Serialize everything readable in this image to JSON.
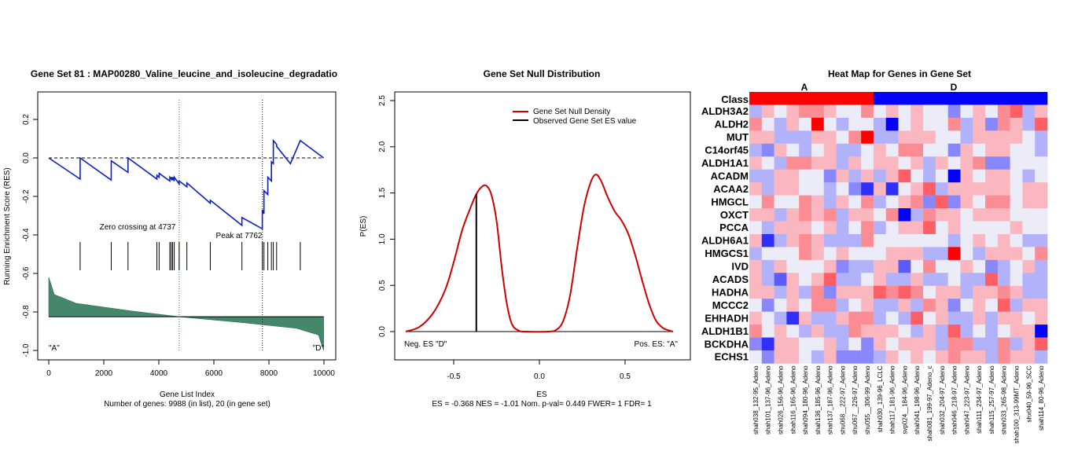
{
  "panel1": {
    "title": "Gene Set  81 : MAP00280_Valine_leucine_and_isoleucine_degradatio",
    "ylabel": "Running Enrichment Score (RES)",
    "xlabel": "Gene List Index",
    "footer": "Number of genes: 9988 (in list), 20 (in gene set)",
    "annot_zero": "Zero crossing at 4737",
    "annot_peak": "Peak at 7762",
    "corner_left": "\"A\"",
    "corner_right": "\"D\"",
    "xticks": [
      "0",
      "2000",
      "4000",
      "6000",
      "8000",
      "10000"
    ],
    "yticks": [
      "-1.0",
      "-0.8",
      "-0.6",
      "-0.4",
      "-0.2",
      "0.0",
      "0.2"
    ]
  },
  "panel2": {
    "title": "Gene Set Null Distribution",
    "ylabel": "P(ES)",
    "xlabel": "ES",
    "footer": "ES = -0.368  NES = -1.01 Nom. p-val= 0.449 FWER= 1 FDR= 1",
    "legend_density": "Gene Set Null Density",
    "legend_observed": "Observed Gene Set ES value",
    "neg_label": "Neg. ES \"D\"",
    "pos_label": "Pos. ES: \"A\"",
    "xticks": [
      "-0.5",
      "0.0",
      "0.5"
    ],
    "yticks": [
      "0.0",
      "0.5",
      "1.0",
      "1.5",
      "2.0",
      "2.5"
    ]
  },
  "panel3": {
    "title": "Heat Map for Genes in Gene Set",
    "class_label": "Class",
    "class_a": "A",
    "class_d": "D",
    "genes": [
      "ALDH3A2",
      "ALDH2",
      "MUT",
      "C14orf45",
      "ALDH1A1",
      "ACADM",
      "ACAA2",
      "HMGCL",
      "OXCT",
      "PCCA",
      "ALDH6A1",
      "HMGCS1",
      "IVD",
      "ACADS",
      "HADHA",
      "MCCC2",
      "EHHADH",
      "ALDH1B1",
      "BCKDHA",
      "ECHS1"
    ],
    "samples": [
      "shah038_132-95_Adeno",
      "shah101_137-96_Adeno",
      "shah026_156-96_Adeno",
      "shah116_165-96_Adeno",
      "shah094_180-96_Adeno",
      "shah136_185-96_Adeno",
      "shah137_187-96_Adeno",
      "shu068__222-97_Adeno",
      "shu067__226-97_Adeno",
      "shu055__306-99_Adeno",
      "shah030_139-96_LCLC",
      "shah117_181-96_Adeno",
      "svp024__184-96_Adeno",
      "shah041_198-96_Adeno",
      "shah081_199-97_Adeno_c",
      "shah032_204-97_Adeno",
      "shah046_218-97_Adeno",
      "shah047_223-97_Adeno",
      "shah111_234-97_Adeno",
      "shah115_257-97_Adeno",
      "shah033_265-98_Adeno",
      "shah100_313-99MT_Adeno",
      "shx040_59-96_SCC",
      "shah114_80-96_Adeno"
    ],
    "colors": {
      "class_a": "#ff0000",
      "class_d": "#0000ff",
      "high": "#ff0000",
      "low": "#0000ff"
    }
  },
  "chart_data": [
    {
      "type": "line",
      "title": "Gene Set  81 : MAP00280_Valine_leucine_and_isoleucine_degradatio",
      "xlabel": "Gene List Index",
      "ylabel": "Running Enrichment Score (RES)",
      "xlim": [
        0,
        10000
      ],
      "ylim": [
        -1.05,
        0.3
      ],
      "hit_positions": [
        1140,
        2270,
        2880,
        3930,
        4010,
        4400,
        4450,
        4500,
        4560,
        4740,
        5020,
        5870,
        7020,
        7760,
        7820,
        7960,
        8090,
        8160,
        8280,
        9140
      ],
      "series": [
        {
          "x": [
            0,
            1140,
            1141,
            2270,
            2271,
            2880,
            2881,
            3930,
            3931,
            4010,
            4011,
            4400,
            4401,
            4450,
            4451,
            4500,
            4501,
            4560,
            4561,
            4740,
            4741,
            5020,
            5021,
            5870,
            5871,
            7020,
            7021,
            7760,
            7761,
            7820,
            7821,
            7960,
            7961,
            8090,
            8091,
            8160,
            8161,
            8280,
            8281,
            8780,
            8781,
            9140,
            9141,
            9988
          ],
          "y": [
            0.0,
            -0.11,
            0.0,
            -0.115,
            -0.015,
            -0.075,
            0.0,
            -0.11,
            -0.09,
            -0.1,
            -0.08,
            -0.12,
            -0.1,
            -0.11,
            -0.1,
            -0.115,
            -0.1,
            -0.12,
            -0.1,
            -0.135,
            -0.12,
            -0.15,
            -0.13,
            -0.235,
            -0.22,
            -0.35,
            -0.31,
            -0.368,
            -0.27,
            -0.29,
            -0.17,
            -0.19,
            -0.1,
            -0.12,
            -0.02,
            -0.03,
            0.09,
            0.07,
            0.06,
            -0.03,
            -0.03,
            0.09,
            0.09,
            0.0
          ]
        }
      ],
      "ranked_metric": {
        "x": [
          0,
          200,
          1000,
          3000,
          4737,
          7000,
          9000,
          9800,
          9988
        ],
        "y": [
          -0.62,
          -0.71,
          -0.755,
          -0.795,
          -0.825,
          -0.855,
          -0.885,
          -0.92,
          -1.0
        ],
        "baseline": -0.825
      },
      "vlines": [
        4737,
        7762
      ],
      "hline": 0.0
    },
    {
      "type": "line",
      "title": "Gene Set Null Distribution",
      "xlabel": "ES",
      "ylabel": "P(ES)",
      "xlim": [
        -0.8,
        0.8
      ],
      "ylim": [
        -0.3,
        2.65
      ],
      "series": [
        {
          "name": "Gene Set Null Density",
          "x": [
            -0.78,
            -0.7,
            -0.62,
            -0.55,
            -0.5,
            -0.45,
            -0.4,
            -0.37,
            -0.34,
            -0.31,
            -0.28,
            -0.25,
            -0.22,
            -0.19,
            -0.16,
            -0.12,
            -0.08,
            0.05,
            0.1,
            0.14,
            0.18,
            0.22,
            0.26,
            0.3,
            0.33,
            0.36,
            0.4,
            0.44,
            0.48,
            0.52,
            0.56,
            0.6,
            0.64,
            0.68,
            0.72,
            0.76,
            0.78
          ],
          "y": [
            0.0,
            0.05,
            0.2,
            0.45,
            0.75,
            1.1,
            1.35,
            1.48,
            1.56,
            1.58,
            1.48,
            1.2,
            0.7,
            0.3,
            0.08,
            0.01,
            0.0,
            0.0,
            0.02,
            0.12,
            0.4,
            0.9,
            1.35,
            1.62,
            1.7,
            1.63,
            1.45,
            1.3,
            1.2,
            1.05,
            0.82,
            0.55,
            0.3,
            0.12,
            0.04,
            0.01,
            0.0
          ]
        }
      ],
      "observed_es": -0.368,
      "observed_density": 1.49
    },
    {
      "type": "heatmap",
      "title": "Heat Map for Genes in Gene Set",
      "rows": [
        "ALDH3A2",
        "ALDH2",
        "MUT",
        "C14orf45",
        "ALDH1A1",
        "ACADM",
        "ACAA2",
        "HMGCL",
        "OXCT",
        "PCCA",
        "ALDH6A1",
        "HMGCS1",
        "IVD",
        "ACADS",
        "HADHA",
        "MCCC2",
        "EHHADH",
        "ALDH1B1",
        "BCKDHA",
        "ECHS1"
      ],
      "classes": [
        "A",
        "A",
        "A",
        "A",
        "A",
        "A",
        "A",
        "A",
        "A",
        "A",
        "D",
        "D",
        "D",
        "D",
        "D",
        "D",
        "D",
        "D",
        "D",
        "D",
        "D",
        "D",
        "D",
        "D"
      ],
      "values": [
        [
          -1,
          1,
          0,
          1,
          2,
          2,
          1,
          0,
          0,
          2,
          0,
          1,
          0,
          1,
          0,
          0,
          -2,
          0,
          1,
          0,
          2,
          3,
          -1,
          1
        ],
        [
          2,
          0,
          -1,
          1,
          0,
          5,
          0,
          -1,
          0,
          0,
          -1,
          -5,
          0,
          1,
          0,
          0,
          2,
          -1,
          1,
          -2,
          2,
          1,
          -1,
          3
        ],
        [
          1,
          1,
          -1,
          -1,
          -1,
          1,
          1,
          0,
          2,
          5,
          -1,
          -1,
          1,
          1,
          1,
          0,
          0,
          -1,
          1,
          1,
          1,
          1,
          0,
          -1
        ],
        [
          -1,
          -2,
          1,
          0,
          -1,
          0,
          1,
          -1,
          -1,
          0,
          1,
          0,
          2,
          2,
          0,
          0,
          -2,
          1,
          0,
          1,
          1,
          0,
          0,
          -1
        ],
        [
          1,
          0,
          -1,
          2,
          2,
          1,
          1,
          -1,
          1,
          0,
          1,
          1,
          0,
          1,
          -1,
          1,
          0,
          1,
          2,
          -2,
          -2,
          0,
          0,
          0
        ],
        [
          -1,
          -1,
          1,
          1,
          0,
          0,
          -2,
          1,
          -1,
          1,
          -1,
          1,
          3,
          0,
          -1,
          0,
          -5,
          1,
          0,
          1,
          1,
          0,
          -1,
          0
        ],
        [
          1,
          -1,
          1,
          1,
          0,
          0,
          -1,
          0,
          -2,
          -4,
          1,
          -4,
          0,
          1,
          3,
          -1,
          1,
          1,
          1,
          1,
          1,
          0,
          1,
          1
        ],
        [
          0,
          2,
          0,
          0,
          2,
          1,
          -1,
          1,
          0,
          2,
          -1,
          0,
          1,
          2,
          -2,
          3,
          -2,
          1,
          0,
          2,
          2,
          0,
          1,
          1
        ],
        [
          1,
          1,
          -1,
          1,
          2,
          1,
          2,
          -1,
          1,
          1,
          0,
          2,
          -5,
          -1,
          2,
          1,
          1,
          0,
          1,
          1,
          1,
          0,
          0,
          0
        ],
        [
          0,
          -1,
          1,
          1,
          1,
          0,
          1,
          -1,
          0,
          2,
          -1,
          0,
          1,
          1,
          3,
          0,
          1,
          0,
          0,
          0,
          0,
          1,
          0,
          0
        ],
        [
          1,
          -4,
          -1,
          1,
          2,
          1,
          -1,
          -1,
          -1,
          2,
          0,
          0,
          0,
          0,
          0,
          0,
          -1,
          0,
          1,
          0,
          1,
          0,
          -1,
          -1
        ],
        [
          -1,
          0,
          0,
          0,
          2,
          1,
          0,
          1,
          0,
          0,
          0,
          1,
          1,
          1,
          -1,
          -1,
          5,
          0,
          -1,
          1,
          1,
          1,
          0,
          2
        ],
        [
          1,
          -1,
          1,
          0,
          0,
          0,
          1,
          -2,
          -1,
          -1,
          1,
          1,
          -3,
          0,
          2,
          0,
          0,
          1,
          0,
          -2,
          -1,
          0,
          1,
          -1
        ],
        [
          1,
          -1,
          -3,
          1,
          0,
          1,
          3,
          -1,
          -1,
          0,
          1,
          -1,
          -1,
          1,
          -1,
          -1,
          0,
          -1,
          -1,
          3,
          -1,
          0,
          -1,
          -1
        ],
        [
          1,
          1,
          -1,
          1,
          -1,
          2,
          -2,
          1,
          1,
          1,
          3,
          2,
          3,
          2,
          0,
          1,
          1,
          -1,
          1,
          1,
          2,
          1,
          -1,
          -1
        ],
        [
          0,
          -2,
          0,
          1,
          0,
          2,
          2,
          -1,
          0,
          1,
          -1,
          -1,
          1,
          -1,
          2,
          1,
          -2,
          0,
          1,
          0,
          3,
          -1,
          1,
          1
        ],
        [
          1,
          0,
          -1,
          -4,
          1,
          -1,
          -1,
          1,
          2,
          2,
          -1,
          0,
          -1,
          3,
          0,
          1,
          -1,
          -1,
          1,
          -1,
          1,
          1,
          0,
          1
        ],
        [
          2,
          0,
          1,
          0,
          -1,
          1,
          -1,
          -1,
          2,
          1,
          1,
          1,
          0,
          -1,
          1,
          -1,
          3,
          -1,
          0,
          -1,
          0,
          1,
          1,
          -5
        ],
        [
          -2,
          -4,
          1,
          1,
          0,
          0,
          1,
          -1,
          0,
          -2,
          1,
          0,
          1,
          1,
          1,
          -1,
          2,
          2,
          -1,
          -1,
          2,
          -1,
          1,
          3
        ],
        [
          0,
          -2,
          1,
          1,
          0,
          -1,
          1,
          -2,
          -2,
          -2,
          -1,
          1,
          0,
          1,
          0,
          1,
          2,
          1,
          1,
          -1,
          2,
          1,
          1,
          -1
        ]
      ]
    }
  ]
}
